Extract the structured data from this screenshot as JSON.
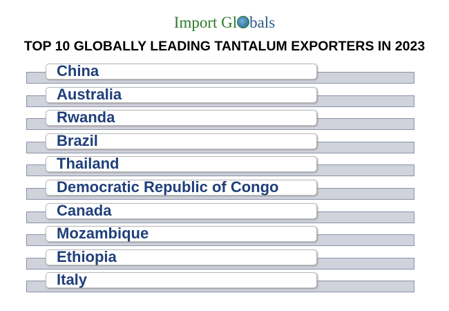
{
  "logo": {
    "part1": "Import Gl",
    "part2": "bals"
  },
  "title": "TOP 10 GLOBALLY LEADING TANTALUM EXPORTERS IN 2023",
  "countries": [
    "China",
    "Australia",
    "Rwanda",
    "Brazil",
    "Thailand",
    "Democratic Republic of Congo",
    "Canada",
    "Mozambique",
    "Ethiopia",
    "Italy"
  ]
}
